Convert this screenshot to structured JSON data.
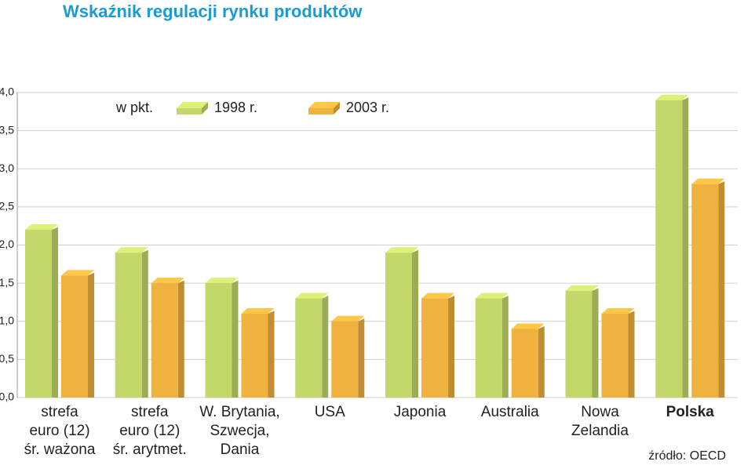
{
  "chart_data": {
    "type": "bar3d",
    "title": "Wskaźnik regulacji rynku produktów",
    "legend_title": "w pkt.",
    "source": "źródło: OECD",
    "categories": [
      "strefa\neuro (12)\nśr. ważona",
      "strefa\neuro (12)\nśr. arytmet.",
      "W. Brytania,\nSzwecja,\nDania",
      "USA",
      "Japonia",
      "Australia",
      "Nowa\nZelandia",
      "Polska"
    ],
    "highlight": "Polska",
    "highlight_color": "#c8143c",
    "series": [
      {
        "name": "1998 r.",
        "color": "#c3d86a",
        "values": [
          2.2,
          1.9,
          1.5,
          1.3,
          1.9,
          1.3,
          1.4,
          3.9
        ]
      },
      {
        "name": "2003 r.",
        "color": "#f0b23e",
        "values": [
          1.6,
          1.5,
          1.1,
          1.0,
          1.3,
          0.9,
          1.1,
          2.8
        ]
      }
    ],
    "ylim": [
      0,
      4
    ],
    "yticks": [
      {
        "value": 0,
        "label": "0,0"
      },
      {
        "value": 0.5,
        "label": "0,5"
      },
      {
        "value": 1,
        "label": "1,0"
      },
      {
        "value": 1.5,
        "label": "1,5"
      },
      {
        "value": 2,
        "label": "2,0"
      },
      {
        "value": 2.5,
        "label": "2,5"
      },
      {
        "value": 3,
        "label": "3,0"
      },
      {
        "value": 3.5,
        "label": "3,5"
      },
      {
        "value": 4,
        "label": "4,0"
      }
    ],
    "grid": true
  }
}
